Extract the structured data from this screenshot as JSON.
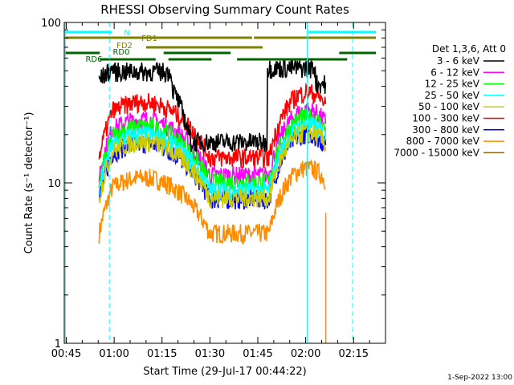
{
  "chart_data": {
    "type": "line",
    "title": "RHESSI Observing Summary Count Rates",
    "xlabel": "Start Time (29-Jul-17 00:44:22)",
    "ylabel": "Count Rate (s⁻¹ detector⁻¹)",
    "y_scale": "log",
    "ylim": [
      1,
      100
    ],
    "xlim_minutes": [
      44.37,
      145.0
    ],
    "x_ticks": [
      {
        "label": "00:45",
        "minutes": 45
      },
      {
        "label": "01:00",
        "minutes": 60
      },
      {
        "label": "01:15",
        "minutes": 75
      },
      {
        "label": "01:30",
        "minutes": 90
      },
      {
        "label": "01:45",
        "minutes": 105
      },
      {
        "label": "02:00",
        "minutes": 120
      },
      {
        "label": "02:15",
        "minutes": 135
      }
    ],
    "y_ticks": [
      {
        "label": "1",
        "value": 1
      },
      {
        "label": "10",
        "value": 10
      },
      {
        "label": "100",
        "value": 100
      }
    ],
    "legend_title": "Det 1,3,6, Att 0",
    "legend_position": "right",
    "series": [
      {
        "name": "3 - 6 keV",
        "color": "#000000",
        "level": 1.0
      },
      {
        "name": "6 - 12 keV",
        "color": "#ff00ff",
        "level": 0.62
      },
      {
        "name": "12 - 25 keV",
        "color": "#00ff00",
        "level": 0.56
      },
      {
        "name": "25 - 50 keV",
        "color": "#00ffff",
        "level": 0.5
      },
      {
        "name": "50 - 100 keV",
        "color": "#cccc00",
        "level": 0.45
      },
      {
        "name": "100 - 300 keV",
        "color": "#ff0000",
        "level": 0.8
      },
      {
        "name": "300 - 800 keV",
        "color": "#0000ff",
        "level": 0.44
      },
      {
        "name": "800 - 7000 keV",
        "color": "#ff8c00",
        "level": 0.27
      },
      {
        "name": "7000 - 15000 keV",
        "color": "#8b6914",
        "level": 0.0
      }
    ],
    "observing_bars": [
      {
        "label": "N",
        "color": "#00ffff",
        "segments": [
          [
            44.6,
            59.2
          ],
          [
            120.8,
            142.0
          ]
        ]
      },
      {
        "label": "FD1",
        "color": "#808000",
        "segments": [
          [
            44.6,
            103.2
          ],
          [
            103.8,
            142.0
          ]
        ]
      },
      {
        "label": "FD2",
        "color": "#808000",
        "segments": [
          [
            70.0,
            106.5
          ]
        ]
      },
      {
        "label": "RD0",
        "color": "#006400",
        "segments": [
          [
            44.6,
            55.5
          ],
          [
            75.5,
            96.5
          ],
          [
            130.5,
            142.0
          ]
        ]
      },
      {
        "label": "RD6",
        "color": "#006400",
        "segments": [
          [
            55.5,
            73.0
          ],
          [
            77.0,
            90.5
          ],
          [
            98.5,
            133.0
          ]
        ]
      }
    ],
    "vlines": [
      {
        "minutes": 44.7,
        "color": "#00ffff",
        "style": "solid"
      },
      {
        "minutes": 58.5,
        "color": "#00ffff",
        "style": "dashed"
      },
      {
        "minutes": 120.5,
        "color": "#00ffff",
        "style": "solid"
      },
      {
        "minutes": 134.7,
        "color": "#00ffff",
        "style": "dashed"
      }
    ],
    "timestamp": "1-Sep-2022 13:00"
  }
}
